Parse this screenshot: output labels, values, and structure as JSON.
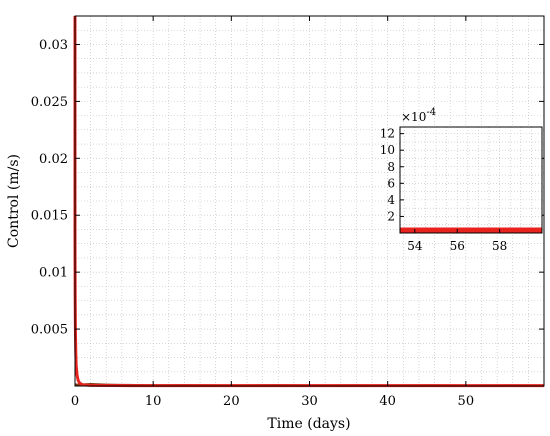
{
  "chart_data": [
    {
      "type": "line",
      "xlabel": "Time (days)",
      "ylabel": "Control (m/s)",
      "xlim": [
        0,
        60
      ],
      "ylim": [
        0,
        0.0325
      ],
      "xticks": [
        0,
        10,
        20,
        30,
        40,
        50
      ],
      "xtick_labels": [
        "0",
        "10",
        "20",
        "30",
        "40",
        "50"
      ],
      "yticks": [
        0.005,
        0.01,
        0.015,
        0.02,
        0.025,
        0.03
      ],
      "ytick_labels": [
        "0.005",
        "0.01",
        "0.015",
        "0.02",
        "0.025",
        "0.03"
      ],
      "grid": true,
      "series": [
        {
          "color": "#e8231e",
          "x": [
            0,
            0,
            0.02,
            0.05,
            0.1,
            0.15,
            0.25,
            0.4,
            0.6,
            1,
            2,
            5,
            10,
            20,
            30,
            40,
            50,
            60
          ],
          "y": [
            0.0325,
            0.013,
            0.008,
            0.005,
            0.003,
            0.0018,
            0.001,
            0.0005,
            0.00025,
            0.0001,
            6e-05,
            4e-05,
            3e-05,
            3e-05,
            3e-05,
            3e-05,
            3e-05,
            3e-05
          ]
        },
        {
          "color": "#7a3b16",
          "x": [
            0,
            0.3,
            2,
            4,
            6,
            10,
            14,
            20,
            26,
            30,
            36,
            40,
            46,
            50,
            56,
            60
          ],
          "y": [
            0.00012,
            0.0001,
            0.00015,
            0.0001,
            8e-05,
            4e-05,
            6e-05,
            3e-05,
            5e-05,
            3e-05,
            4e-05,
            3e-05,
            4e-05,
            2e-05,
            3e-05,
            2e-05
          ]
        }
      ]
    },
    {
      "type": "line",
      "role": "inset",
      "xlim": [
        53.3,
        60
      ],
      "ylim": [
        0,
        0.00128
      ],
      "xticks": [
        54,
        56,
        58
      ],
      "xtick_labels": [
        "54",
        "56",
        "58"
      ],
      "yticks": [
        0.0002,
        0.0004,
        0.0006,
        0.0008,
        0.001,
        0.0012
      ],
      "ytick_labels": [
        "2",
        "4",
        "6",
        "8",
        "10",
        "12"
      ],
      "y_multiplier_base": "×10",
      "y_multiplier_exp": "-4",
      "grid": true,
      "series": [
        {
          "color": "#e8231e",
          "x": [
            53.3,
            60
          ],
          "y_low": [
            1e-05,
            1e-05
          ],
          "y_high": [
            6e-05,
            6e-05
          ]
        }
      ]
    }
  ]
}
